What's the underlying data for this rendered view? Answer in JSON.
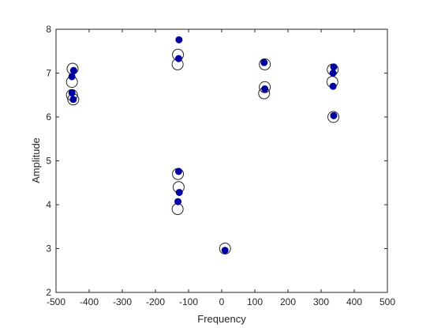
{
  "chart_data": {
    "type": "scatter",
    "xlabel": "Frequency",
    "ylabel": "Amplitude",
    "xlim": [
      -500,
      500
    ],
    "ylim": [
      2,
      8
    ],
    "xticks": [
      -500,
      -400,
      -300,
      -200,
      -100,
      0,
      100,
      200,
      300,
      400,
      500
    ],
    "yticks": [
      2,
      3,
      4,
      5,
      6,
      7,
      8
    ],
    "xtick_labels": [
      "-500",
      "-400",
      "-300",
      "-200",
      "-100",
      "0",
      "100",
      "200",
      "300",
      "400",
      "500"
    ],
    "ytick_labels": [
      "2",
      "3",
      "4",
      "5",
      "6",
      "7",
      "8"
    ],
    "grid": false,
    "box": true,
    "series": [
      {
        "marker": "open-circle",
        "color": "#262626",
        "points": [
          {
            "x": -450,
            "y": 7.1
          },
          {
            "x": -452,
            "y": 6.8
          },
          {
            "x": -452,
            "y": 6.5
          },
          {
            "x": -448,
            "y": 6.4
          },
          {
            "x": -132,
            "y": 7.42
          },
          {
            "x": -133,
            "y": 7.2
          },
          {
            "x": -132,
            "y": 4.7
          },
          {
            "x": -130,
            "y": 4.4
          },
          {
            "x": -133,
            "y": 3.9
          },
          {
            "x": 10,
            "y": 3.0
          },
          {
            "x": 130,
            "y": 7.2
          },
          {
            "x": 130,
            "y": 6.68
          },
          {
            "x": 128,
            "y": 6.54
          },
          {
            "x": 335,
            "y": 7.08
          },
          {
            "x": 334,
            "y": 6.8
          },
          {
            "x": 337,
            "y": 6.0
          }
        ]
      },
      {
        "marker": "filled-circle",
        "color": "#0000a0",
        "points": [
          {
            "x": -447,
            "y": 7.06
          },
          {
            "x": -452,
            "y": 6.92
          },
          {
            "x": -452,
            "y": 6.55
          },
          {
            "x": -448,
            "y": 6.4
          },
          {
            "x": -129,
            "y": 7.76
          },
          {
            "x": -130,
            "y": 7.33
          },
          {
            "x": -130,
            "y": 4.76
          },
          {
            "x": -128,
            "y": 4.28
          },
          {
            "x": -132,
            "y": 4.07
          },
          {
            "x": 10,
            "y": 2.96
          },
          {
            "x": 128,
            "y": 7.24
          },
          {
            "x": 130,
            "y": 6.64
          },
          {
            "x": 338,
            "y": 7.14
          },
          {
            "x": 336,
            "y": 7.0
          },
          {
            "x": 336,
            "y": 6.7
          },
          {
            "x": 338,
            "y": 6.03
          }
        ]
      }
    ]
  }
}
